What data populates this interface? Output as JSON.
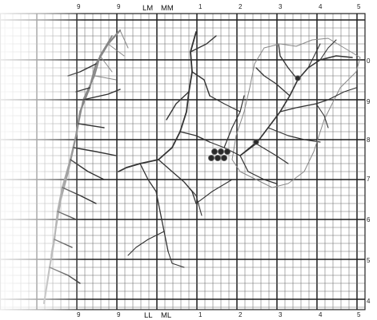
{
  "top_labels": [
    "9",
    "LM",
    "MM",
    "1",
    "2",
    "3",
    "4",
    "5"
  ],
  "bottom_labels": [
    "9",
    "LL",
    "ML",
    "1",
    "2",
    "3",
    "4",
    "5"
  ],
  "right_labels": [
    "0",
    "9",
    "8",
    "7",
    "6",
    "5",
    "4"
  ],
  "colors": {
    "grid": "#6a6a6a",
    "major_grid": "#1e1e1e",
    "drainage": "#333333"
  }
}
